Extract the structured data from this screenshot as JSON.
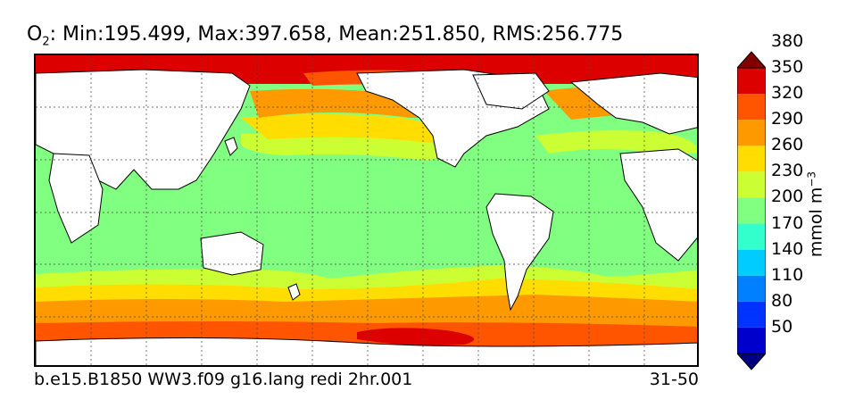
{
  "title": {
    "species": "O",
    "subscript": "2",
    "stats": ": Min:195.499, Max:397.658, Mean:251.850, RMS:256.775"
  },
  "footer": {
    "case_name": "b.e15.B1850 WW3.f09 g16.lang redi 2hr.001",
    "years": "31-50"
  },
  "colorbar": {
    "units": "mmol m",
    "units_exponent": "−3",
    "ticks": [
      "50",
      "80",
      "110",
      "140",
      "170",
      "200",
      "230",
      "260",
      "290",
      "320",
      "350",
      "380"
    ],
    "levels": [
      {
        "label": "below 50",
        "color": "#000080"
      },
      {
        "label": "50-80",
        "color": "#0000cd"
      },
      {
        "label": "80-110",
        "color": "#0033ff"
      },
      {
        "label": "110-140",
        "color": "#0080ff"
      },
      {
        "label": "140-170",
        "color": "#00ccff"
      },
      {
        "label": "170-200",
        "color": "#33ffcc"
      },
      {
        "label": "200-230",
        "color": "#80ff80"
      },
      {
        "label": "230-260",
        "color": "#ccff33"
      },
      {
        "label": "260-290",
        "color": "#ffdd00"
      },
      {
        "label": "290-320",
        "color": "#ff9900"
      },
      {
        "label": "320-350",
        "color": "#ff5500"
      },
      {
        "label": "350-380",
        "color": "#dd0000"
      },
      {
        "label": "above 380",
        "color": "#800000"
      }
    ]
  }
}
